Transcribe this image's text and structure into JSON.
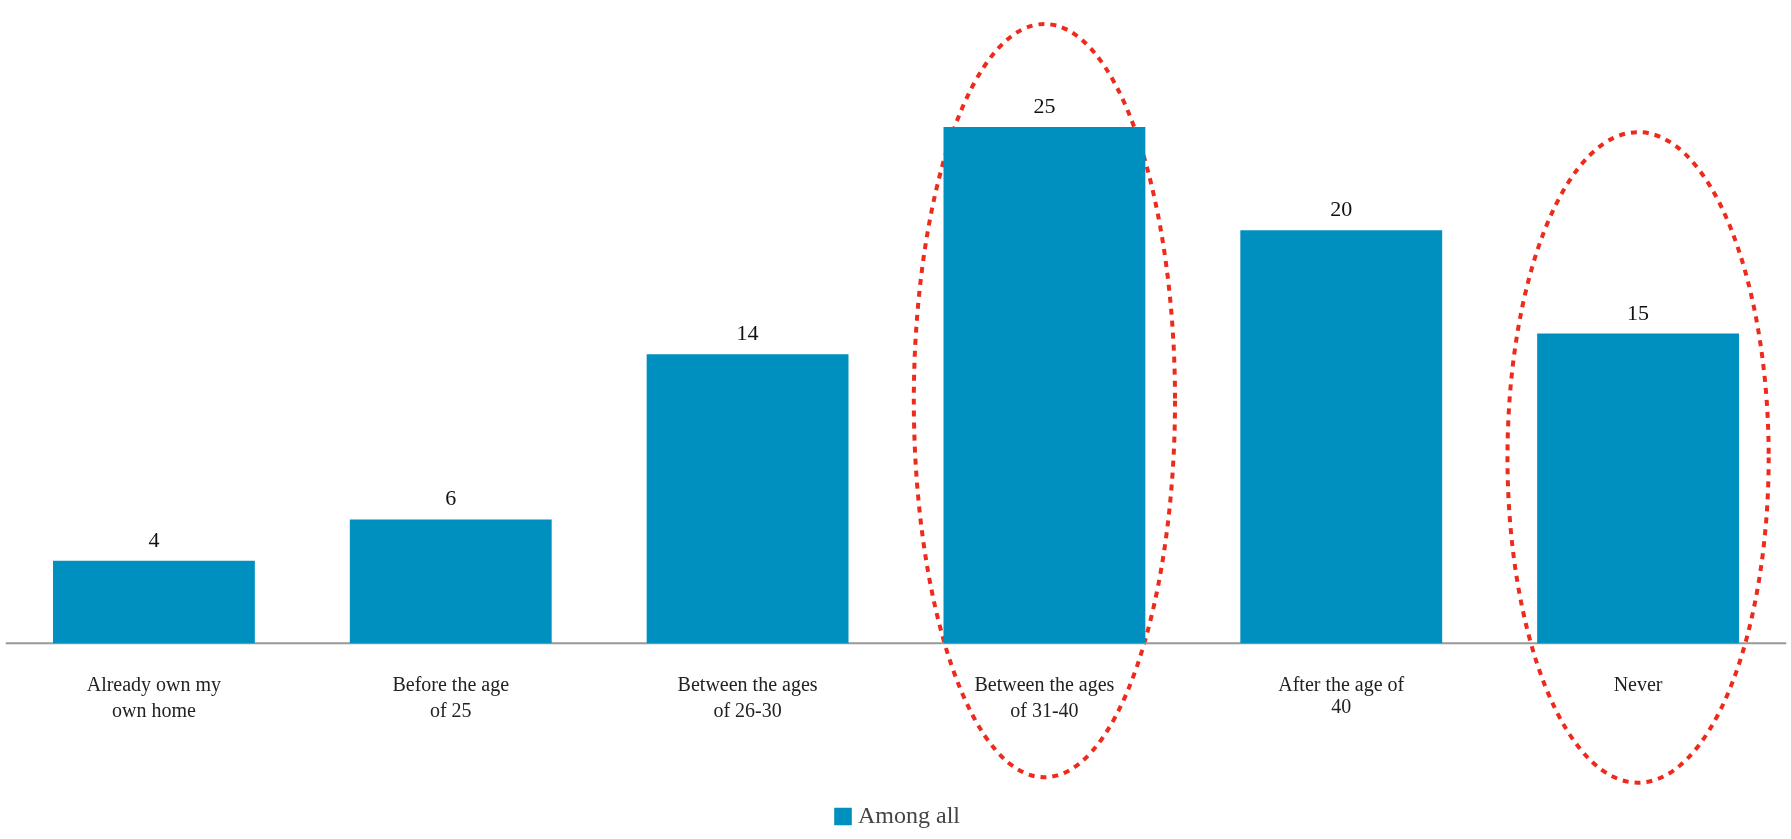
{
  "chart_data": {
    "type": "bar",
    "categories": [
      "Already own my own home",
      "Before the age of 25",
      "Between the ages of 26-30",
      "Between the ages of 31-40",
      "After the age of 40",
      "Never"
    ],
    "series": [
      {
        "name": "Among all",
        "color": "#0090bf",
        "values": [
          4,
          6,
          14,
          25,
          20,
          15
        ]
      }
    ],
    "data_labels": true,
    "legend": "bottom",
    "grid": false
  }
}
